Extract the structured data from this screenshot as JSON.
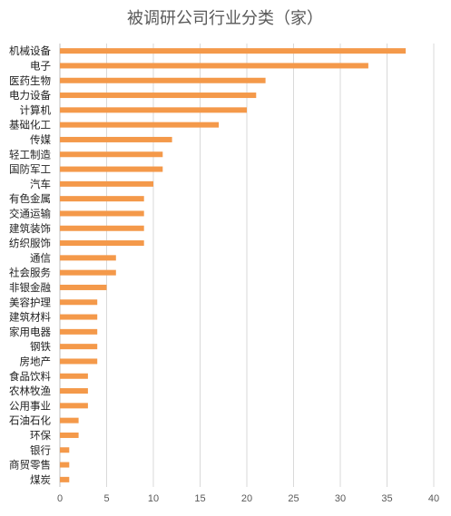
{
  "chart_data": {
    "type": "bar",
    "orientation": "horizontal",
    "title": "被调研公司行业分类（家）",
    "categories": [
      "机械设备",
      "电子",
      "医药生物",
      "电力设备",
      "计算机",
      "基础化工",
      "传媒",
      "轻工制造",
      "国防军工",
      "汽车",
      "有色金属",
      "交通运输",
      "建筑装饰",
      "纺织服饰",
      "通信",
      "社会服务",
      "非银金融",
      "美容护理",
      "建筑材料",
      "家用电器",
      "钢铁",
      "房地产",
      "食品饮料",
      "农林牧渔",
      "公用事业",
      "石油石化",
      "环保",
      "银行",
      "商贸零售",
      "煤炭"
    ],
    "values": [
      37,
      33,
      22,
      21,
      20,
      17,
      12,
      11,
      11,
      10,
      9,
      9,
      9,
      9,
      6,
      6,
      5,
      4,
      4,
      4,
      4,
      4,
      3,
      3,
      3,
      2,
      2,
      1,
      1,
      1
    ],
    "xlim": [
      0,
      40
    ],
    "xticks": [
      0,
      5,
      10,
      15,
      20,
      25,
      30,
      35,
      40
    ],
    "xlabel": "",
    "ylabel": "",
    "grid": true,
    "legend": "none",
    "bar_color": "#F4994A"
  }
}
